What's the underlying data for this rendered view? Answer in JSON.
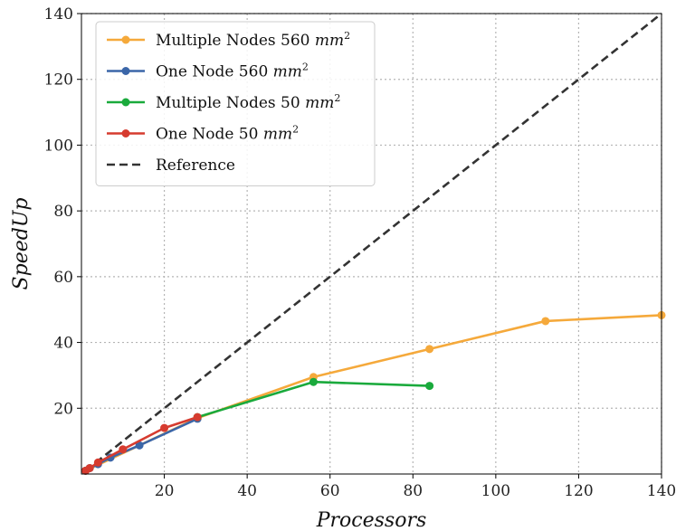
{
  "chart_data": {
    "type": "line",
    "title": "",
    "xlabel": "Processors",
    "ylabel": "SpeedUp",
    "xlim": [
      0,
      140
    ],
    "ylim": [
      0,
      140
    ],
    "xticks": [
      20,
      40,
      60,
      80,
      100,
      120,
      140
    ],
    "yticks": [
      20,
      40,
      60,
      80,
      100,
      120,
      140
    ],
    "grid": true,
    "legend_position": "top-left",
    "series": [
      {
        "name": "Multiple Nodes 560",
        "name_unit": "mm",
        "name_unit_exp": "2",
        "color": "#f5a93b",
        "style": "solid",
        "marker": true,
        "x": [
          1,
          28,
          56,
          84,
          112,
          140
        ],
        "y": [
          1,
          17,
          29.5,
          38,
          46.5,
          48.3
        ]
      },
      {
        "name": "One Node 560",
        "name_unit": "mm",
        "name_unit_exp": "2",
        "color": "#3b66a8",
        "style": "solid",
        "marker": true,
        "x": [
          1,
          2,
          4,
          7,
          14,
          28
        ],
        "y": [
          1,
          1.8,
          3,
          5,
          8.7,
          16.8
        ]
      },
      {
        "name": "Multiple Nodes 50",
        "name_unit": "mm",
        "name_unit_exp": "2",
        "color": "#1aaa3c",
        "style": "solid",
        "marker": true,
        "x": [
          28,
          56,
          84
        ],
        "y": [
          17.3,
          28,
          26.8
        ]
      },
      {
        "name": "One Node 50",
        "name_unit": "mm",
        "name_unit_exp": "2",
        "color": "#d63b2f",
        "style": "solid",
        "marker": true,
        "x": [
          1,
          2,
          4,
          10,
          20,
          28
        ],
        "y": [
          1,
          1.8,
          3.5,
          7.5,
          14,
          17.3
        ]
      },
      {
        "name": "Reference",
        "name_unit": "",
        "name_unit_exp": "",
        "color": "#333333",
        "style": "dashed",
        "marker": false,
        "x": [
          1,
          140
        ],
        "y": [
          1,
          140
        ]
      }
    ]
  }
}
